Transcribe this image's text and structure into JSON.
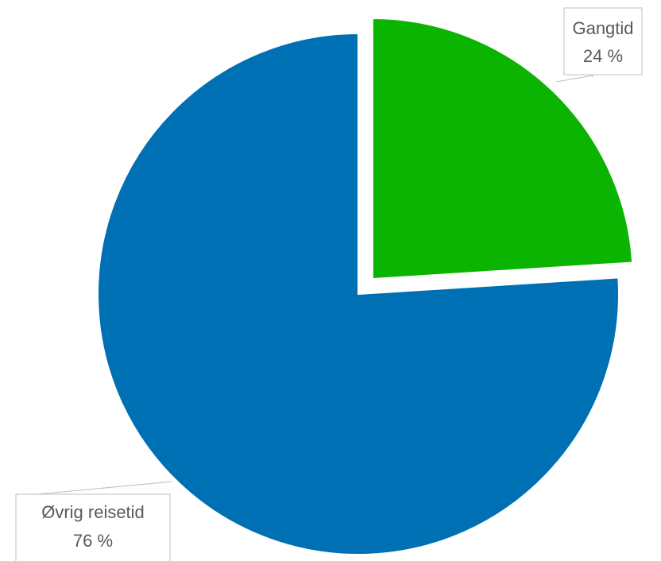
{
  "chart_data": {
    "type": "pie",
    "title": "",
    "slices": [
      {
        "label": "Gangtid",
        "value": 24,
        "value_label": "24 %",
        "color": "#0BB400",
        "exploded": true
      },
      {
        "label": "Øvrig reisetid",
        "value": 76,
        "value_label": "76 %",
        "color": "#0070B4",
        "exploded": false
      }
    ],
    "legend": "none",
    "data_labels": "callout"
  }
}
